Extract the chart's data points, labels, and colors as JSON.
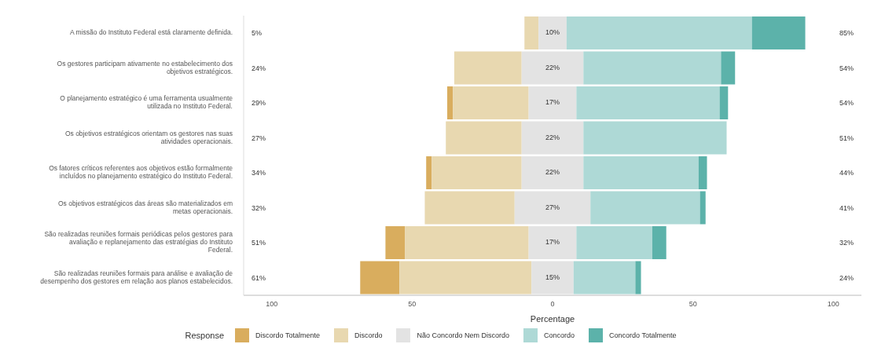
{
  "chart_data": {
    "type": "bar",
    "orientation": "horizontal",
    "categories": [
      "A missão do Instituto Federal está claramente definida.",
      "Os gestores participam ativamente no estabelecimento dos objetivos estratégicos.",
      "O planejamento estratégico é uma ferramenta usualmente utilizada no Instituto Federal.",
      "Os objetivos estratégicos orientam os gestores nas suas atividades operacionais.",
      "Os fatores críticos referentes aos objetivos estão formalmente incluídos no planejamento estratégico do Instituto Federal.",
      "Os objetivos estratégicos das áreas são materializados em metas operacionais.",
      "São realizadas reuniões formais periódicas pelos gestores para avaliação e replanejamento das estratégias do Instituto Federal.",
      "São realizadas reuniões formais para análise e avaliação de desempenho dos gestores em relação aos planos estabelecidos."
    ],
    "series": [
      {
        "name": "Discordo Totalmente",
        "color": "#d9ad5e",
        "values": [
          null,
          null,
          2,
          null,
          2,
          null,
          7,
          14
        ],
        "base": [
          null,
          null,
          -37.5,
          null,
          -45,
          null,
          -59.5,
          -68.5
        ]
      },
      {
        "name": "Discordo",
        "color": "#e8d8b0",
        "values": [
          5,
          24,
          27,
          27,
          32,
          32,
          44,
          47
        ],
        "base": [
          -10,
          -35,
          -35.5,
          -38,
          -43,
          -45.5,
          -52.5,
          -54.5
        ]
      },
      {
        "name": "Não Concordo Nem Discordo",
        "color": "#e3e3e3",
        "values": [
          10,
          22,
          17,
          22,
          22,
          27,
          17,
          15
        ],
        "base": [
          -5,
          -11,
          -8.5,
          -11,
          -11,
          -13.5,
          -8.5,
          -7.5
        ],
        "value_labels": [
          "10%",
          "22%",
          "17%",
          "22%",
          "22%",
          "27%",
          "17%",
          "15%"
        ]
      },
      {
        "name": "Concordo",
        "color": "#aed9d6",
        "values": [
          66,
          49,
          51,
          51,
          41,
          39,
          27,
          22
        ],
        "base": [
          5,
          11,
          8.5,
          11,
          11,
          13.5,
          8.5,
          7.5
        ]
      },
      {
        "name": "Concordo Totalmente",
        "color": "#5cb2aa",
        "values": [
          19,
          5,
          3,
          null,
          3,
          2,
          5,
          2
        ],
        "base": [
          71,
          60,
          59.5,
          null,
          52,
          52.5,
          35.5,
          29.5
        ]
      }
    ],
    "xlim": [
      -110,
      110
    ],
    "xticks": [
      {
        "value": -100,
        "label": "100"
      },
      {
        "value": -50,
        "label": "50"
      },
      0,
      50,
      100
    ],
    "xlabel": "Percentage",
    "legend_title": "Response",
    "legend": "bottom",
    "grid": false,
    "annotations": [
      "5%",
      "24%",
      "29%",
      "27%",
      "34%",
      "32%",
      "51%",
      "61%",
      "85%",
      "54%",
      "54%",
      "51%",
      "44%",
      "41%",
      "32%",
      "24%"
    ]
  }
}
